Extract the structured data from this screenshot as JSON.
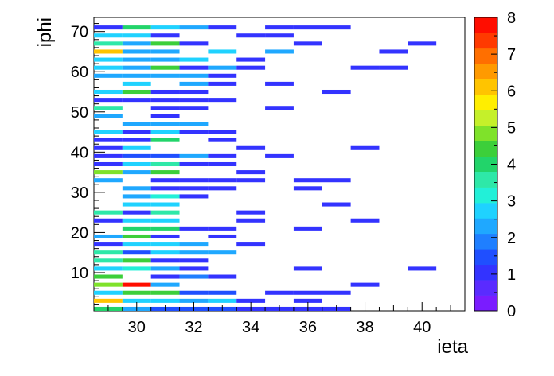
{
  "chart_data": {
    "type": "heatmap",
    "title": "",
    "xlabel": "ieta",
    "ylabel": "iphi",
    "xlim": [
      28.5,
      41.5
    ],
    "ylim": [
      0.5,
      73.5
    ],
    "zlim": [
      0,
      8
    ],
    "x_ticks": [
      30,
      32,
      34,
      36,
      38,
      40
    ],
    "y_ticks": [
      10,
      20,
      30,
      40,
      50,
      60,
      70
    ],
    "z_ticks": [
      0,
      1,
      2,
      3,
      4,
      5,
      6,
      7,
      8
    ],
    "palette": [
      "#7a1cff",
      "#5a2bff",
      "#3333ff",
      "#1f4fff",
      "#1f7fff",
      "#1fa8ff",
      "#1fd2ff",
      "#22f0d8",
      "#2ee8a8",
      "#22d46a",
      "#3ccf3a",
      "#7fe22a",
      "#c5f02a",
      "#ffee00",
      "#ffc400",
      "#ff9a00",
      "#ff6f00",
      "#ff3a00",
      "#ff0d00"
    ],
    "rows": [
      {
        "iphi": 1,
        "cells": [
          [
            29,
            3.8
          ],
          [
            30,
            2.2
          ],
          [
            31,
            1.4
          ],
          [
            32,
            1.4
          ],
          [
            33,
            1.4
          ],
          [
            34,
            1.0
          ],
          [
            35,
            1.0
          ],
          [
            36,
            1.0
          ],
          [
            37,
            1.0
          ]
        ]
      },
      {
        "iphi": 3,
        "cells": [
          [
            29,
            6.0
          ],
          [
            30,
            2.9
          ],
          [
            31,
            2.9
          ],
          [
            32,
            2.2
          ],
          [
            33,
            2.9
          ],
          [
            34,
            1.0
          ],
          [
            36,
            1.0
          ]
        ]
      },
      {
        "iphi": 5,
        "cells": [
          [
            29,
            2.9
          ],
          [
            30,
            4.3
          ],
          [
            31,
            4.3
          ],
          [
            32,
            1.6
          ],
          [
            33,
            1.6
          ],
          [
            35,
            1.0
          ],
          [
            36,
            1.0
          ],
          [
            37,
            1.0
          ]
        ]
      },
      {
        "iphi": 7,
        "cells": [
          [
            29,
            5.0
          ],
          [
            30,
            7.8
          ],
          [
            31,
            2.2
          ],
          [
            38,
            1.0
          ]
        ]
      },
      {
        "iphi": 9,
        "cells": [
          [
            29,
            4.6
          ],
          [
            31,
            1.0
          ],
          [
            32,
            1.9
          ],
          [
            33,
            1.0
          ]
        ]
      },
      {
        "iphi": 11,
        "cells": [
          [
            29,
            2.9
          ],
          [
            30,
            3.2
          ],
          [
            31,
            2.2
          ],
          [
            32,
            1.0
          ],
          [
            36,
            1.0
          ],
          [
            40,
            1.0
          ]
        ]
      },
      {
        "iphi": 13,
        "cells": [
          [
            29,
            3.4
          ],
          [
            30,
            4.6
          ],
          [
            31,
            1.0
          ],
          [
            32,
            1.0
          ]
        ]
      },
      {
        "iphi": 15,
        "cells": [
          [
            29,
            3.4
          ],
          [
            30,
            1.4
          ],
          [
            31,
            2.8
          ],
          [
            32,
            2.2
          ],
          [
            33,
            2.2
          ]
        ]
      },
      {
        "iphi": 17,
        "cells": [
          [
            29,
            1.0
          ],
          [
            30,
            2.9
          ],
          [
            31,
            2.9
          ],
          [
            32,
            2.2
          ],
          [
            34,
            1.0
          ]
        ]
      },
      {
        "iphi": 19,
        "cells": [
          [
            29,
            2.2
          ],
          [
            30,
            4.4
          ],
          [
            31,
            1.0
          ],
          [
            33,
            1.0
          ]
        ]
      },
      {
        "iphi": 21,
        "cells": [
          [
            30,
            4.2
          ],
          [
            31,
            4.2
          ],
          [
            32,
            1.0
          ],
          [
            33,
            1.0
          ],
          [
            36,
            1.0
          ]
        ]
      },
      {
        "iphi": 23,
        "cells": [
          [
            29,
            1.0
          ],
          [
            30,
            2.9
          ],
          [
            31,
            2.9
          ],
          [
            34,
            1.0
          ],
          [
            38,
            1.0
          ]
        ]
      },
      {
        "iphi": 25,
        "cells": [
          [
            29,
            3.4
          ],
          [
            30,
            1.0
          ],
          [
            31,
            3.4
          ],
          [
            34,
            1.0
          ]
        ]
      },
      {
        "iphi": 27,
        "cells": [
          [
            30,
            2.8
          ],
          [
            31,
            2.8
          ],
          [
            37,
            1.0
          ]
        ]
      },
      {
        "iphi": 29,
        "cells": [
          [
            30,
            2.2
          ],
          [
            31,
            3.2
          ],
          [
            32,
            1.0
          ]
        ]
      },
      {
        "iphi": 31,
        "cells": [
          [
            30,
            2.2
          ],
          [
            31,
            1.0
          ],
          [
            32,
            1.0
          ],
          [
            33,
            1.0
          ],
          [
            36,
            1.0
          ]
        ]
      },
      {
        "iphi": 33,
        "cells": [
          [
            29,
            2.2
          ],
          [
            31,
            1.0
          ],
          [
            32,
            1.0
          ],
          [
            33,
            1.0
          ],
          [
            34,
            1.0
          ],
          [
            36,
            1.0
          ],
          [
            37,
            1.0
          ]
        ]
      },
      {
        "iphi": 35,
        "cells": [
          [
            29,
            5.0
          ],
          [
            30,
            2.2
          ],
          [
            31,
            4.3
          ],
          [
            34,
            1.0
          ]
        ]
      },
      {
        "iphi": 37,
        "cells": [
          [
            29,
            1.0
          ],
          [
            30,
            2.9
          ],
          [
            31,
            3.4
          ],
          [
            32,
            1.0
          ],
          [
            33,
            1.0
          ]
        ]
      },
      {
        "iphi": 39,
        "cells": [
          [
            29,
            1.0
          ],
          [
            30,
            1.6
          ],
          [
            31,
            1.6
          ],
          [
            32,
            2.2
          ],
          [
            33,
            1.0
          ],
          [
            35,
            1.0
          ]
        ]
      },
      {
        "iphi": 41,
        "cells": [
          [
            29,
            1.0
          ],
          [
            30,
            2.9
          ],
          [
            34,
            1.0
          ],
          [
            38,
            1.0
          ]
        ]
      },
      {
        "iphi": 43,
        "cells": [
          [
            29,
            1.0
          ],
          [
            30,
            1.0
          ],
          [
            31,
            4.2
          ],
          [
            33,
            1.0
          ]
        ]
      },
      {
        "iphi": 45,
        "cells": [
          [
            29,
            2.9
          ],
          [
            30,
            1.0
          ],
          [
            31,
            2.9
          ],
          [
            32,
            1.0
          ],
          [
            33,
            1.0
          ]
        ]
      },
      {
        "iphi": 47,
        "cells": [
          [
            30,
            2.2
          ],
          [
            31,
            2.2
          ],
          [
            32,
            2.2
          ]
        ]
      },
      {
        "iphi": 49,
        "cells": [
          [
            29,
            2.2
          ],
          [
            31,
            1.0
          ]
        ]
      },
      {
        "iphi": 51,
        "cells": [
          [
            29,
            3.4
          ],
          [
            31,
            1.0
          ],
          [
            32,
            1.0
          ],
          [
            35,
            1.0
          ]
        ]
      },
      {
        "iphi": 53,
        "cells": [
          [
            29,
            1.0
          ],
          [
            30,
            1.0
          ],
          [
            31,
            1.0
          ],
          [
            32,
            1.0
          ],
          [
            33,
            1.0
          ]
        ]
      },
      {
        "iphi": 55,
        "cells": [
          [
            29,
            2.9
          ],
          [
            30,
            4.3
          ],
          [
            31,
            1.0
          ],
          [
            32,
            1.0
          ],
          [
            37,
            1.0
          ]
        ]
      },
      {
        "iphi": 57,
        "cells": [
          [
            30,
            2.9
          ],
          [
            32,
            2.2
          ],
          [
            33,
            1.0
          ],
          [
            35,
            1.0
          ]
        ]
      },
      {
        "iphi": 59,
        "cells": [
          [
            29,
            2.2
          ],
          [
            30,
            2.2
          ],
          [
            31,
            2.2
          ],
          [
            32,
            2.2
          ],
          [
            33,
            1.0
          ]
        ]
      },
      {
        "iphi": 61,
        "cells": [
          [
            29,
            2.9
          ],
          [
            30,
            2.2
          ],
          [
            31,
            4.6
          ],
          [
            32,
            1.0
          ],
          [
            33,
            2.2
          ],
          [
            34,
            1.0
          ],
          [
            38,
            1.0
          ],
          [
            39,
            1.0
          ]
        ]
      },
      {
        "iphi": 63,
        "cells": [
          [
            29,
            2.9
          ],
          [
            30,
            2.2
          ],
          [
            31,
            2.2
          ],
          [
            32,
            2.9
          ],
          [
            34,
            1.0
          ]
        ]
      },
      {
        "iphi": 65,
        "cells": [
          [
            29,
            6.0
          ],
          [
            30,
            2.2
          ],
          [
            31,
            2.2
          ],
          [
            33,
            2.9
          ],
          [
            35,
            2.2
          ],
          [
            39,
            1.0
          ]
        ]
      },
      {
        "iphi": 67,
        "cells": [
          [
            29,
            3.4
          ],
          [
            30,
            2.2
          ],
          [
            31,
            4.3
          ],
          [
            32,
            1.0
          ],
          [
            36,
            1.0
          ],
          [
            40,
            1.0
          ]
        ]
      },
      {
        "iphi": 69,
        "cells": [
          [
            29,
            2.9
          ],
          [
            30,
            2.9
          ],
          [
            31,
            1.0
          ],
          [
            34,
            1.0
          ],
          [
            35,
            1.0
          ]
        ]
      },
      {
        "iphi": 71,
        "cells": [
          [
            29,
            1.0
          ],
          [
            30,
            4.2
          ],
          [
            31,
            2.9
          ],
          [
            32,
            2.2
          ],
          [
            33,
            1.0
          ],
          [
            35,
            1.0
          ],
          [
            36,
            1.0
          ],
          [
            37,
            1.0
          ]
        ]
      }
    ]
  }
}
